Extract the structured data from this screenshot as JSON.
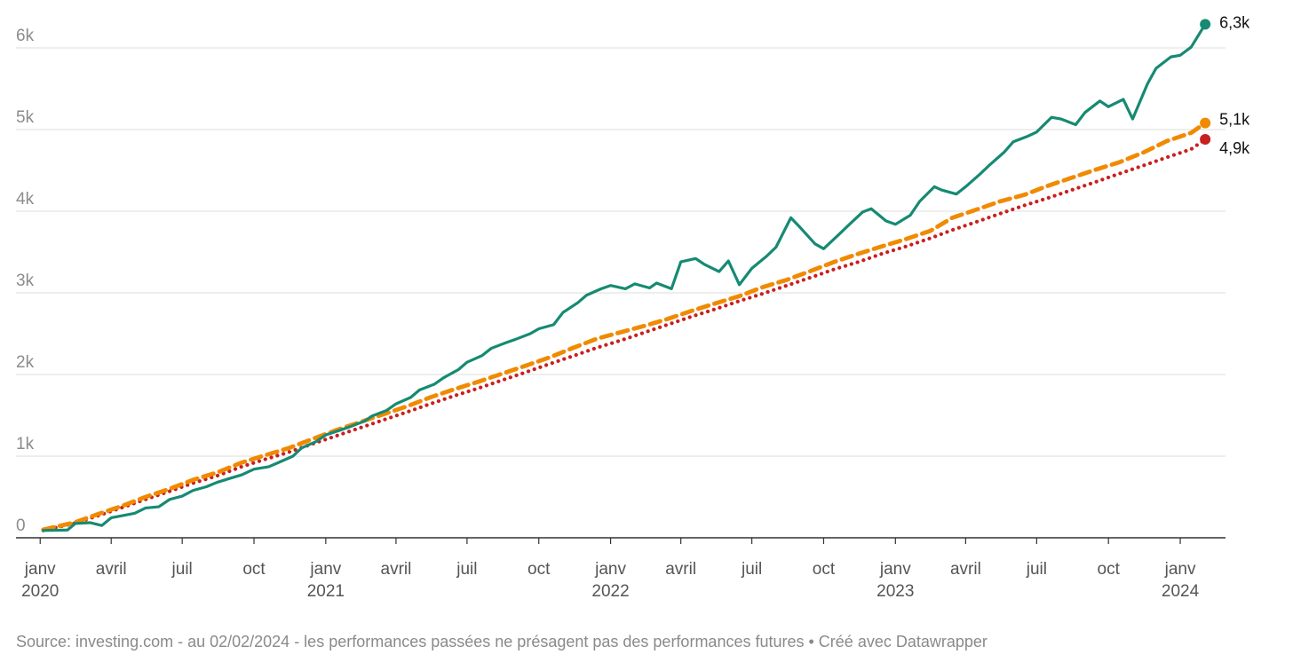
{
  "colors": {
    "green": "#168a73",
    "orange": "#f08a00",
    "red": "#c91f1f",
    "grid": "#dddddd",
    "axis": "#333333"
  },
  "source": "Source: investing.com - au 02/02/2024 - les performances passées ne présagent pas des performances futures • Créé avec Datawrapper",
  "chart_data": {
    "type": "line",
    "title": "",
    "xlabel": "",
    "ylabel": "",
    "x_range": [
      "2019-12-01",
      "2024-02-28"
    ],
    "ylim": [
      0,
      6000
    ],
    "grid": true,
    "y_ticks": [
      {
        "value": 0,
        "label": "0"
      },
      {
        "value": 1000,
        "label": "1k"
      },
      {
        "value": 2000,
        "label": "2k"
      },
      {
        "value": 3000,
        "label": "3k"
      },
      {
        "value": 4000,
        "label": "4k"
      },
      {
        "value": 5000,
        "label": "5k"
      },
      {
        "value": 6000,
        "label": "6k"
      }
    ],
    "x_ticks": [
      {
        "date": "2020-01-01",
        "label": "janv",
        "year": "2020"
      },
      {
        "date": "2020-04-01",
        "label": "avril",
        "year": ""
      },
      {
        "date": "2020-07-01",
        "label": "juil",
        "year": ""
      },
      {
        "date": "2020-10-01",
        "label": "oct",
        "year": ""
      },
      {
        "date": "2021-01-01",
        "label": "janv",
        "year": "2021"
      },
      {
        "date": "2021-04-01",
        "label": "avril",
        "year": ""
      },
      {
        "date": "2021-07-01",
        "label": "juil",
        "year": ""
      },
      {
        "date": "2021-10-01",
        "label": "oct",
        "year": ""
      },
      {
        "date": "2022-01-01",
        "label": "janv",
        "year": "2022"
      },
      {
        "date": "2022-04-01",
        "label": "avril",
        "year": ""
      },
      {
        "date": "2022-07-01",
        "label": "juil",
        "year": ""
      },
      {
        "date": "2022-10-01",
        "label": "oct",
        "year": ""
      },
      {
        "date": "2023-01-01",
        "label": "janv",
        "year": "2023"
      },
      {
        "date": "2023-04-01",
        "label": "avril",
        "year": ""
      },
      {
        "date": "2023-07-01",
        "label": "juil",
        "year": ""
      },
      {
        "date": "2023-10-01",
        "label": "oct",
        "year": ""
      },
      {
        "date": "2024-01-01",
        "label": "janv",
        "year": "2024"
      }
    ],
    "series": [
      {
        "key": "green",
        "label": "6,3k",
        "style": "solid",
        "points": [
          [
            "2020-01-05",
            90
          ],
          [
            "2020-02-05",
            95
          ],
          [
            "2020-02-15",
            175
          ],
          [
            "2020-03-05",
            185
          ],
          [
            "2020-03-20",
            150
          ],
          [
            "2020-04-01",
            245
          ],
          [
            "2020-05-01",
            300
          ],
          [
            "2020-05-15",
            365
          ],
          [
            "2020-06-01",
            380
          ],
          [
            "2020-06-15",
            470
          ],
          [
            "2020-07-01",
            510
          ],
          [
            "2020-07-15",
            580
          ],
          [
            "2020-08-01",
            625
          ],
          [
            "2020-08-15",
            680
          ],
          [
            "2020-09-01",
            730
          ],
          [
            "2020-09-15",
            770
          ],
          [
            "2020-10-01",
            840
          ],
          [
            "2020-10-20",
            870
          ],
          [
            "2020-11-01",
            920
          ],
          [
            "2020-11-20",
            1000
          ],
          [
            "2020-12-01",
            1100
          ],
          [
            "2020-12-20",
            1180
          ],
          [
            "2021-01-01",
            1260
          ],
          [
            "2021-01-20",
            1320
          ],
          [
            "2021-02-01",
            1360
          ],
          [
            "2021-02-20",
            1430
          ],
          [
            "2021-03-01",
            1490
          ],
          [
            "2021-03-20",
            1560
          ],
          [
            "2021-04-01",
            1640
          ],
          [
            "2021-04-20",
            1720
          ],
          [
            "2021-05-01",
            1810
          ],
          [
            "2021-05-20",
            1880
          ],
          [
            "2021-06-01",
            1960
          ],
          [
            "2021-06-20",
            2060
          ],
          [
            "2021-07-01",
            2150
          ],
          [
            "2021-07-20",
            2230
          ],
          [
            "2021-08-01",
            2320
          ],
          [
            "2021-08-20",
            2390
          ],
          [
            "2021-09-01",
            2430
          ],
          [
            "2021-09-20",
            2500
          ],
          [
            "2021-10-01",
            2560
          ],
          [
            "2021-10-20",
            2610
          ],
          [
            "2021-11-01",
            2760
          ],
          [
            "2021-11-20",
            2880
          ],
          [
            "2021-12-01",
            2970
          ],
          [
            "2021-12-20",
            3050
          ],
          [
            "2022-01-01",
            3090
          ],
          [
            "2022-01-20",
            3050
          ],
          [
            "2022-02-01",
            3110
          ],
          [
            "2022-02-20",
            3060
          ],
          [
            "2022-03-01",
            3120
          ],
          [
            "2022-03-20",
            3050
          ],
          [
            "2022-04-01",
            3380
          ],
          [
            "2022-04-20",
            3420
          ],
          [
            "2022-05-01",
            3350
          ],
          [
            "2022-05-20",
            3260
          ],
          [
            "2022-06-01",
            3390
          ],
          [
            "2022-06-15",
            3100
          ],
          [
            "2022-07-01",
            3300
          ],
          [
            "2022-07-20",
            3450
          ],
          [
            "2022-08-01",
            3560
          ],
          [
            "2022-08-20",
            3920
          ],
          [
            "2022-09-01",
            3800
          ],
          [
            "2022-09-20",
            3600
          ],
          [
            "2022-10-01",
            3540
          ],
          [
            "2022-10-20",
            3710
          ],
          [
            "2022-11-01",
            3820
          ],
          [
            "2022-11-20",
            3990
          ],
          [
            "2022-12-01",
            4030
          ],
          [
            "2022-12-20",
            3880
          ],
          [
            "2023-01-01",
            3840
          ],
          [
            "2023-01-20",
            3950
          ],
          [
            "2023-02-01",
            4120
          ],
          [
            "2023-02-20",
            4300
          ],
          [
            "2023-03-01",
            4260
          ],
          [
            "2023-03-20",
            4210
          ],
          [
            "2023-04-01",
            4300
          ],
          [
            "2023-04-20",
            4460
          ],
          [
            "2023-05-01",
            4560
          ],
          [
            "2023-05-20",
            4720
          ],
          [
            "2023-06-01",
            4850
          ],
          [
            "2023-06-20",
            4920
          ],
          [
            "2023-07-01",
            4970
          ],
          [
            "2023-07-20",
            5150
          ],
          [
            "2023-08-01",
            5130
          ],
          [
            "2023-08-20",
            5060
          ],
          [
            "2023-09-01",
            5210
          ],
          [
            "2023-09-20",
            5350
          ],
          [
            "2023-10-01",
            5280
          ],
          [
            "2023-10-20",
            5370
          ],
          [
            "2023-11-01",
            5130
          ],
          [
            "2023-11-20",
            5560
          ],
          [
            "2023-12-01",
            5750
          ],
          [
            "2023-12-20",
            5890
          ],
          [
            "2024-01-01",
            5910
          ],
          [
            "2024-01-15",
            6010
          ],
          [
            "2024-02-02",
            6290
          ]
        ]
      },
      {
        "key": "orange",
        "label": "5,1k",
        "style": "dashed",
        "points": [
          [
            "2020-01-05",
            100
          ],
          [
            "2020-02-15",
            190
          ],
          [
            "2020-03-15",
            290
          ],
          [
            "2020-04-15",
            390
          ],
          [
            "2020-05-15",
            500
          ],
          [
            "2020-06-15",
            600
          ],
          [
            "2020-07-15",
            710
          ],
          [
            "2020-08-15",
            800
          ],
          [
            "2020-09-15",
            920
          ],
          [
            "2020-10-15",
            1010
          ],
          [
            "2020-11-15",
            1100
          ],
          [
            "2020-12-15",
            1210
          ],
          [
            "2021-01-15",
            1320
          ],
          [
            "2021-02-15",
            1420
          ],
          [
            "2021-03-15",
            1510
          ],
          [
            "2021-04-15",
            1610
          ],
          [
            "2021-05-15",
            1720
          ],
          [
            "2021-06-15",
            1820
          ],
          [
            "2021-07-15",
            1910
          ],
          [
            "2021-08-15",
            2010
          ],
          [
            "2021-09-15",
            2110
          ],
          [
            "2021-10-15",
            2210
          ],
          [
            "2021-11-15",
            2330
          ],
          [
            "2021-12-15",
            2440
          ],
          [
            "2022-01-15",
            2520
          ],
          [
            "2022-02-15",
            2600
          ],
          [
            "2022-03-15",
            2680
          ],
          [
            "2022-04-15",
            2780
          ],
          [
            "2022-05-15",
            2870
          ],
          [
            "2022-06-15",
            2960
          ],
          [
            "2022-07-15",
            3070
          ],
          [
            "2022-08-15",
            3160
          ],
          [
            "2022-09-15",
            3270
          ],
          [
            "2022-10-15",
            3380
          ],
          [
            "2022-11-15",
            3480
          ],
          [
            "2022-12-15",
            3570
          ],
          [
            "2023-01-15",
            3660
          ],
          [
            "2023-02-15",
            3760
          ],
          [
            "2023-03-15",
            3920
          ],
          [
            "2023-04-15",
            4020
          ],
          [
            "2023-05-15",
            4120
          ],
          [
            "2023-06-15",
            4200
          ],
          [
            "2023-07-15",
            4310
          ],
          [
            "2023-08-15",
            4410
          ],
          [
            "2023-09-15",
            4510
          ],
          [
            "2023-10-15",
            4600
          ],
          [
            "2023-11-15",
            4720
          ],
          [
            "2023-12-15",
            4860
          ],
          [
            "2024-01-15",
            4960
          ],
          [
            "2024-02-02",
            5080
          ]
        ]
      },
      {
        "key": "red",
        "label": "4,9k",
        "style": "dotted",
        "points": [
          [
            "2020-01-05",
            90
          ],
          [
            "2020-02-15",
            180
          ],
          [
            "2020-03-15",
            270
          ],
          [
            "2020-04-15",
            370
          ],
          [
            "2020-05-15",
            470
          ],
          [
            "2020-06-15",
            570
          ],
          [
            "2020-07-15",
            670
          ],
          [
            "2020-08-15",
            760
          ],
          [
            "2020-09-15",
            870
          ],
          [
            "2020-10-15",
            960
          ],
          [
            "2020-11-15",
            1050
          ],
          [
            "2020-12-15",
            1150
          ],
          [
            "2021-01-15",
            1250
          ],
          [
            "2021-02-15",
            1350
          ],
          [
            "2021-03-15",
            1440
          ],
          [
            "2021-04-15",
            1540
          ],
          [
            "2021-05-15",
            1640
          ],
          [
            "2021-06-15",
            1740
          ],
          [
            "2021-07-15",
            1830
          ],
          [
            "2021-08-15",
            1930
          ],
          [
            "2021-09-15",
            2030
          ],
          [
            "2021-10-15",
            2130
          ],
          [
            "2021-11-15",
            2230
          ],
          [
            "2021-12-15",
            2330
          ],
          [
            "2022-01-15",
            2420
          ],
          [
            "2022-02-15",
            2520
          ],
          [
            "2022-03-15",
            2610
          ],
          [
            "2022-04-15",
            2710
          ],
          [
            "2022-05-15",
            2800
          ],
          [
            "2022-06-15",
            2900
          ],
          [
            "2022-07-15",
            2990
          ],
          [
            "2022-08-15",
            3090
          ],
          [
            "2022-09-15",
            3190
          ],
          [
            "2022-10-15",
            3290
          ],
          [
            "2022-11-15",
            3380
          ],
          [
            "2022-12-15",
            3480
          ],
          [
            "2023-01-15",
            3570
          ],
          [
            "2023-02-15",
            3670
          ],
          [
            "2023-03-15",
            3770
          ],
          [
            "2023-04-15",
            3870
          ],
          [
            "2023-05-15",
            3970
          ],
          [
            "2023-06-15",
            4070
          ],
          [
            "2023-07-15",
            4160
          ],
          [
            "2023-08-15",
            4260
          ],
          [
            "2023-09-15",
            4360
          ],
          [
            "2023-10-15",
            4460
          ],
          [
            "2023-11-15",
            4560
          ],
          [
            "2023-12-15",
            4660
          ],
          [
            "2024-01-15",
            4760
          ],
          [
            "2024-02-02",
            4880
          ]
        ]
      }
    ]
  }
}
